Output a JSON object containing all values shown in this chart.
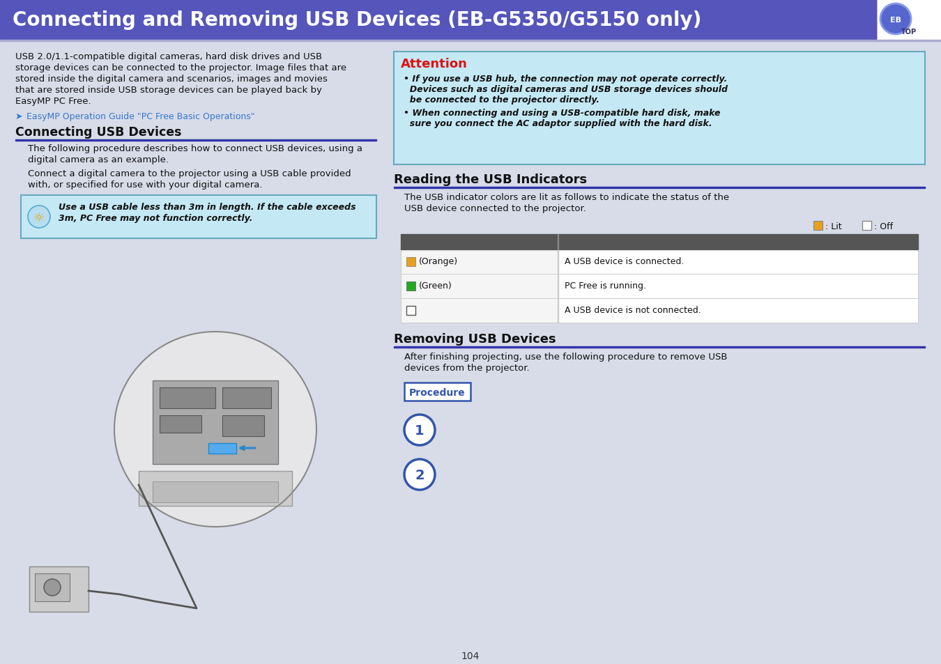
{
  "bg_color": "#d8dce8",
  "header_bg": "#5555bb",
  "header_text": "Connecting and Removing USB Devices (EB-G5350/G5150 only)",
  "header_text_color": "#ffffff",
  "body_text_color": "#111111",
  "section_line_color": "#3333aa",
  "attention_box_bg": "#c5e8f5",
  "attention_box_border": "#66aabb",
  "attention_title": "Attention",
  "attention_title_color": "#dd1111",
  "attention_text1a": "• If you use a USB hub, the connection may not operate correctly.",
  "attention_text1b": "  Devices such as digital cameras and USB storage devices should",
  "attention_text1c": "  be connected to the projector directly.",
  "attention_text2a": "• When connecting and using a USB-compatible hard disk, make",
  "attention_text2b": "  sure you connect the AC adaptor supplied with the hard disk.",
  "tip_box_bg": "#c5e8f5",
  "tip_box_border": "#66aabb",
  "tip_text_a": "Use a USB cable less than 3m in length. If the cable exceeds",
  "tip_text_b": "3m, PC Free may not function correctly.",
  "procedure_box_border": "#3355aa",
  "procedure_text_color": "#3355aa",
  "left_intro_lines": [
    "USB 2.0/1.1-compatible digital cameras, hard disk drives and USB",
    "storage devices can be connected to the projector. Image files that are",
    "stored inside the digital camera and scenarios, images and movies",
    "that are stored inside USB storage devices can be played back by",
    "EasyMP PC Free."
  ],
  "link_text": "EasyMP Operation Guide \"PC Free Basic Operations\"",
  "link_color": "#3377cc",
  "connecting_title": "Connecting USB Devices",
  "connecting_desc1a": "The following procedure describes how to connect USB devices, using a",
  "connecting_desc1b": "digital camera as an example.",
  "connecting_desc2a": "Connect a digital camera to the projector using a USB cable provided",
  "connecting_desc2b": "with, or specified for use with your digital camera.",
  "reading_title": "Reading the USB Indicators",
  "reading_desc1": "The USB indicator colors are lit as follows to indicate the status of the",
  "reading_desc2": "USB device connected to the projector.",
  "table_header_bg": "#555555",
  "table_row1_color_name": "(Orange)",
  "table_row1_color": "#e8a020",
  "table_row1_desc": "A USB device is connected.",
  "table_row2_color_name": "(Green)",
  "table_row2_color": "#22aa22",
  "table_row2_desc": "PC Free is running.",
  "table_row3_desc": "A USB device is not connected.",
  "removing_title": "Removing USB Devices",
  "removing_desc1": "After finishing projecting, use the following procedure to remove USB",
  "removing_desc2": "devices from the projector.",
  "procedure_label": "Procedure",
  "step1_num": "1",
  "step2_num": "2",
  "page_num": "104"
}
